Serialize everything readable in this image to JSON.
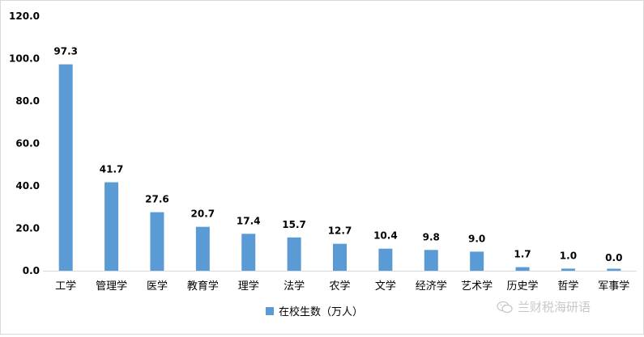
{
  "chart_data": {
    "type": "bar",
    "categories": [
      "工学",
      "管理学",
      "医学",
      "教育学",
      "理学",
      "法学",
      "农学",
      "文学",
      "经济学",
      "艺术学",
      "历史学",
      "哲学",
      "军事学"
    ],
    "series": [
      {
        "name": "在校生数（万人）",
        "values": [
          97.3,
          41.7,
          27.6,
          20.7,
          17.4,
          15.7,
          12.7,
          10.4,
          9.8,
          9.0,
          1.7,
          1.0,
          0.0
        ],
        "labels": [
          "97.3",
          "41.7",
          "27.6",
          "20.7",
          "17.4",
          "15.7",
          "12.7",
          "10.4",
          "9.8",
          "9.0",
          "1.7",
          "1.0",
          "0.0"
        ],
        "color": "#5b9bd5"
      }
    ],
    "highlight_label": {
      "index": 8,
      "color": "#ff0000"
    },
    "yticks": [
      "0.0",
      "20.0",
      "40.0",
      "60.0",
      "80.0",
      "100.0",
      "120.0"
    ],
    "ylim": [
      0,
      120
    ],
    "grid": false,
    "legend": "bottom",
    "title": "",
    "xlabel": "",
    "ylabel": ""
  },
  "watermark": {
    "text": "兰财税海研语",
    "icon": "wechat-icon"
  }
}
